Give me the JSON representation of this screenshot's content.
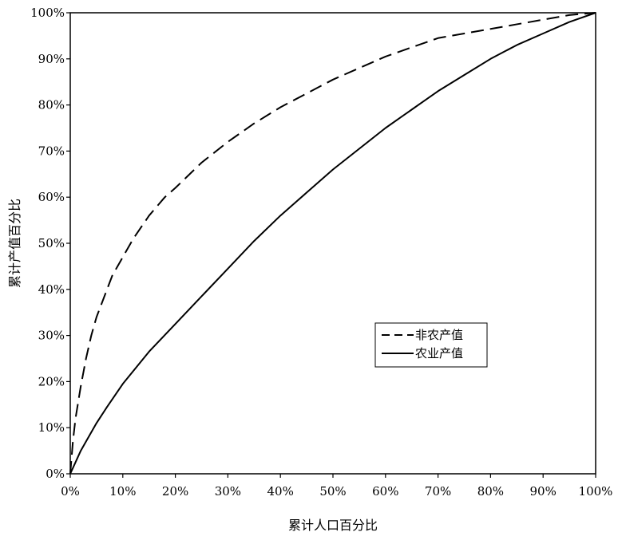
{
  "chart_data": {
    "type": "line",
    "title": "",
    "xlabel": "累计人口百分比",
    "ylabel": "累计产值百分比",
    "xlim": [
      0,
      100
    ],
    "ylim": [
      0,
      100
    ],
    "x_ticks": [
      "0%",
      "10%",
      "20%",
      "30%",
      "40%",
      "50%",
      "60%",
      "70%",
      "80%",
      "90%",
      "100%"
    ],
    "y_ticks": [
      "0%",
      "10%",
      "20%",
      "30%",
      "40%",
      "50%",
      "60%",
      "70%",
      "80%",
      "90%",
      "100%"
    ],
    "grid": false,
    "legend_position": "right-middle",
    "series": [
      {
        "name": "非农产值",
        "style": "dashed",
        "color": "#000000",
        "x": [
          0,
          0.5,
          1,
          2,
          3,
          4,
          5,
          6,
          8,
          10,
          12,
          15,
          18,
          20,
          25,
          30,
          35,
          40,
          45,
          50,
          55,
          60,
          65,
          70,
          75,
          80,
          85,
          90,
          95,
          100
        ],
        "y": [
          0,
          7,
          12,
          19,
          25,
          30,
          34,
          37,
          43,
          47,
          51,
          56,
          60,
          62,
          67.5,
          72,
          76,
          79.5,
          82.5,
          85.5,
          88,
          90.5,
          92.5,
          94.5,
          95.5,
          96.5,
          97.5,
          98.5,
          99.5,
          100
        ]
      },
      {
        "name": "农业产值",
        "style": "solid",
        "color": "#000000",
        "x": [
          0,
          1,
          2,
          3,
          5,
          7,
          10,
          15,
          20,
          25,
          30,
          35,
          40,
          45,
          50,
          55,
          60,
          65,
          70,
          75,
          80,
          85,
          90,
          95,
          100
        ],
        "y": [
          0,
          2.5,
          5,
          7,
          11,
          14.5,
          19.5,
          26.5,
          32.5,
          38.5,
          44.5,
          50.5,
          56,
          61,
          66,
          70.5,
          75,
          79,
          83,
          86.5,
          90,
          93,
          95.5,
          98,
          100
        ]
      }
    ]
  }
}
